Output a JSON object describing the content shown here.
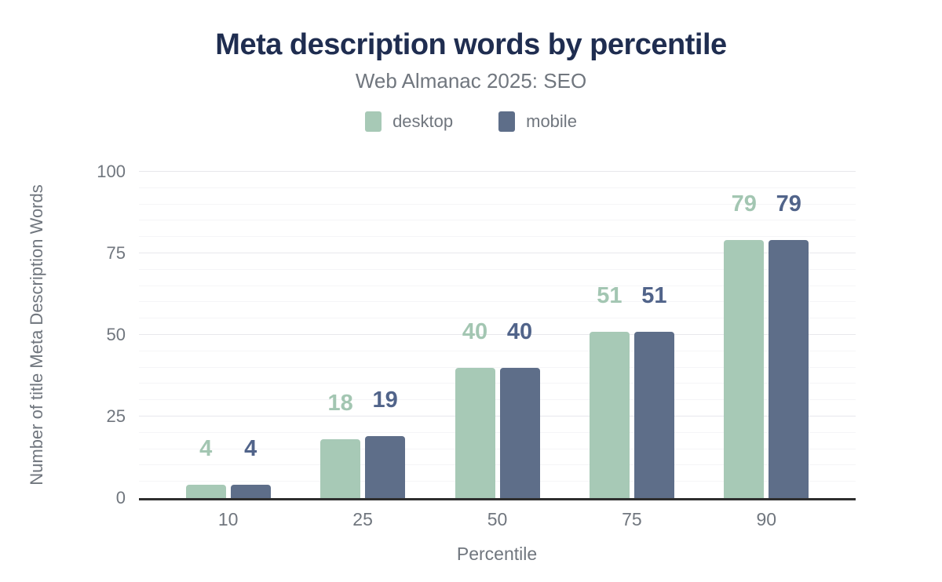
{
  "chart_data": {
    "type": "bar",
    "title": "Meta description words by percentile",
    "subtitle": "Web Almanac 2025: SEO",
    "categories": [
      "10",
      "25",
      "50",
      "75",
      "90"
    ],
    "series": [
      {
        "name": "desktop",
        "values": [
          4,
          18,
          40,
          51,
          79
        ],
        "color": "#a7c9b6",
        "label_color": "#a3c6b2"
      },
      {
        "name": "mobile",
        "values": [
          4,
          19,
          40,
          51,
          79
        ],
        "color": "#5e6e89",
        "label_color": "#51648a"
      }
    ],
    "xlabel": "Percentile",
    "ylabel": "Number of title Meta Description Words",
    "ylim": [
      0,
      100
    ],
    "yticks": [
      0,
      25,
      50,
      75,
      100
    ],
    "minor_grid_step": 5,
    "grid": true,
    "legend_position": "top"
  },
  "colors": {
    "title_text": "#1f2d50",
    "muted_text": "#70767e",
    "major_grid": "#e8e8ec",
    "minor_grid": "#f5f5f7",
    "axis_line": "#2f2f2f",
    "background": "#ffffff",
    "desktop": "#a7c9b6",
    "mobile": "#5e6e89"
  }
}
